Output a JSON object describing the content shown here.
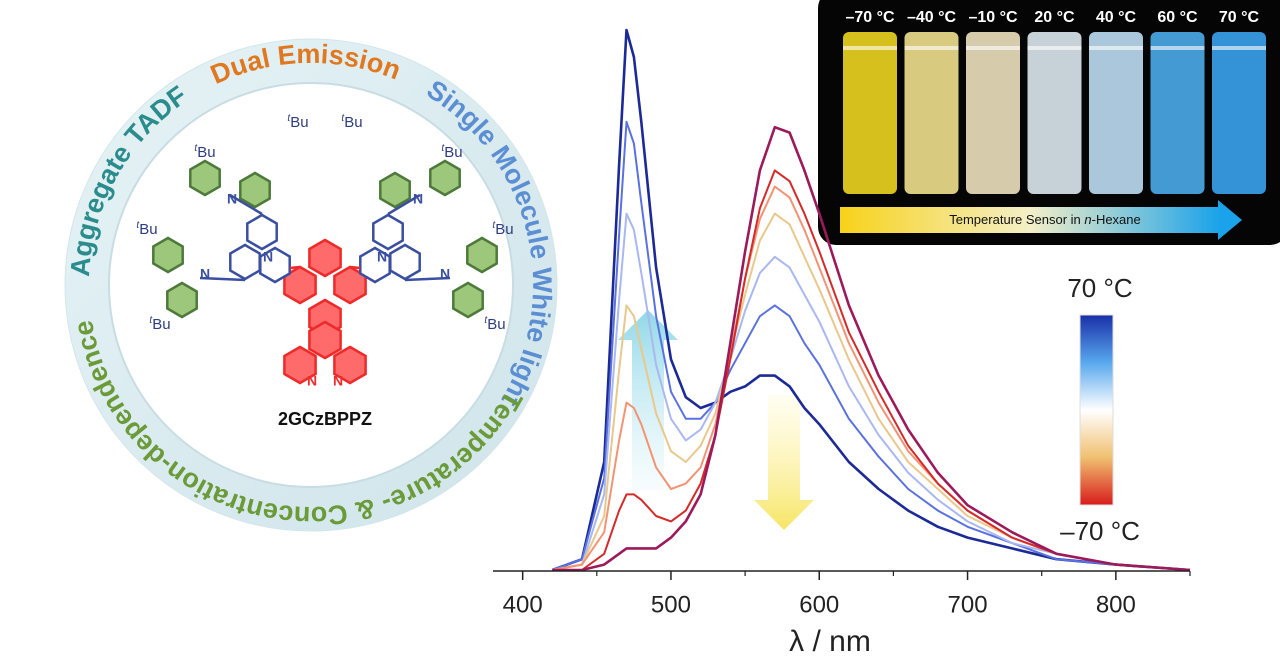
{
  "chart_data": {
    "type": "line",
    "x": [
      420,
      440,
      455,
      465,
      470,
      475,
      480,
      490,
      500,
      510,
      520,
      530,
      540,
      550,
      560,
      570,
      580,
      590,
      600,
      620,
      640,
      660,
      680,
      700,
      730,
      760,
      800,
      850
    ],
    "xlim": [
      380,
      850
    ],
    "xticks": [
      400,
      500,
      600,
      700,
      800
    ],
    "xminorticks": [
      450,
      550,
      650,
      750,
      850
    ],
    "xlabel": "λ / nm",
    "ylim": [
      0,
      1
    ],
    "series": [
      {
        "color": "#1c2a98",
        "values": [
          0,
          0.02,
          0.2,
          0.75,
          1.0,
          0.95,
          0.83,
          0.56,
          0.39,
          0.32,
          0.3,
          0.31,
          0.33,
          0.34,
          0.36,
          0.36,
          0.34,
          0.3,
          0.27,
          0.2,
          0.15,
          0.11,
          0.08,
          0.06,
          0.04,
          0.02,
          0.01,
          0
        ]
      },
      {
        "color": "#5a72e0",
        "values": [
          0,
          0.02,
          0.17,
          0.62,
          0.83,
          0.79,
          0.68,
          0.47,
          0.33,
          0.28,
          0.28,
          0.31,
          0.37,
          0.42,
          0.47,
          0.49,
          0.47,
          0.42,
          0.38,
          0.28,
          0.21,
          0.15,
          0.11,
          0.08,
          0.05,
          0.02,
          0.01,
          0
        ]
      },
      {
        "color": "#aab8f2",
        "values": [
          0,
          0.01,
          0.14,
          0.5,
          0.66,
          0.63,
          0.55,
          0.38,
          0.28,
          0.24,
          0.26,
          0.31,
          0.39,
          0.48,
          0.55,
          0.58,
          0.56,
          0.51,
          0.46,
          0.34,
          0.25,
          0.18,
          0.13,
          0.09,
          0.05,
          0.03,
          0.01,
          0
        ]
      },
      {
        "color": "#e9c88c",
        "values": [
          0,
          0.01,
          0.1,
          0.37,
          0.49,
          0.47,
          0.41,
          0.29,
          0.22,
          0.2,
          0.23,
          0.29,
          0.4,
          0.51,
          0.61,
          0.66,
          0.64,
          0.58,
          0.52,
          0.39,
          0.28,
          0.2,
          0.15,
          0.1,
          0.06,
          0.03,
          0.01,
          0
        ]
      },
      {
        "color": "#f29474",
        "values": [
          0,
          0.01,
          0.07,
          0.24,
          0.31,
          0.3,
          0.27,
          0.19,
          0.15,
          0.16,
          0.19,
          0.27,
          0.4,
          0.54,
          0.65,
          0.71,
          0.69,
          0.63,
          0.56,
          0.42,
          0.31,
          0.22,
          0.16,
          0.11,
          0.06,
          0.03,
          0.01,
          0
        ]
      },
      {
        "color": "#d52a2a",
        "values": [
          0,
          0,
          0.03,
          0.11,
          0.14,
          0.14,
          0.13,
          0.1,
          0.09,
          0.11,
          0.16,
          0.25,
          0.39,
          0.54,
          0.67,
          0.74,
          0.72,
          0.66,
          0.59,
          0.44,
          0.33,
          0.23,
          0.16,
          0.11,
          0.06,
          0.03,
          0.01,
          0
        ]
      },
      {
        "color": "#9c1a5a",
        "values": [
          0,
          0,
          0.01,
          0.03,
          0.04,
          0.04,
          0.04,
          0.04,
          0.06,
          0.09,
          0.14,
          0.25,
          0.42,
          0.59,
          0.74,
          0.82,
          0.81,
          0.74,
          0.66,
          0.49,
          0.36,
          0.26,
          0.18,
          0.12,
          0.07,
          0.03,
          0.01,
          0
        ]
      }
    ],
    "colorbar": {
      "top_label": "70 °C",
      "bottom_label": "–70 °C",
      "colors": [
        "#1a2fa8",
        "#58a8ee",
        "#ffffff",
        "#f0c070",
        "#d81c1c"
      ]
    }
  },
  "ring_texts": [
    {
      "text": "Aggregate TADF",
      "color": "#2a8c8c"
    },
    {
      "text": "Dual Emission",
      "color": "#e07820"
    },
    {
      "text": "Single Molecule White light",
      "color": "#5b8ed2"
    },
    {
      "text": "Temperature- & Concentration-dependence",
      "color": "#6b9a38"
    }
  ],
  "molecule": {
    "name": "2GCzBPPZ",
    "tert": "t",
    "butyl": "Bu",
    "nitrogen": "N"
  },
  "inset": {
    "temperatures": [
      "–70 °C",
      "–40 °C",
      "–10 °C",
      "20 °C",
      "40 °C",
      "60 °C",
      "70 °C"
    ],
    "caption": [
      "Temperature Sensor in ",
      "n",
      "-Hexane"
    ]
  }
}
